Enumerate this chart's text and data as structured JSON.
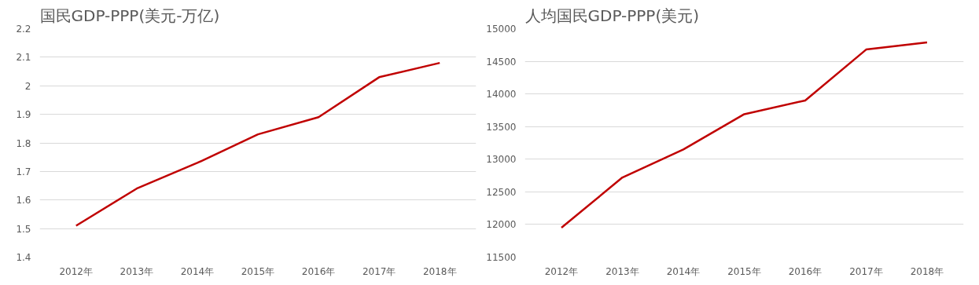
{
  "chart_data": [
    {
      "type": "line",
      "title": "国民GDP-PPP(美元-万亿)",
      "categories": [
        "2012年",
        "2013年",
        "2014年",
        "2015年",
        "2016年",
        "2017年",
        "2018年"
      ],
      "series": [
        {
          "color": "#c00000",
          "values": [
            1.51,
            1.64,
            1.73,
            1.83,
            1.89,
            2.03,
            2.08
          ]
        }
      ],
      "ylim": [
        1.4,
        2.2
      ],
      "yticks": [
        1.4,
        1.5,
        1.6,
        1.7,
        1.8,
        1.9,
        {
          "value": 2.0,
          "label": "2"
        },
        2.1,
        2.2
      ],
      "grid": "y",
      "marker": "none",
      "line_style": "solid"
    },
    {
      "type": "line",
      "title": "人均国民GDP-PPP(美元)",
      "categories": [
        "2012年",
        "2013年",
        "2014年",
        "2015年",
        "2016年",
        "2017年",
        "2018年"
      ],
      "series": [
        {
          "color": "#c00000",
          "values": [
            11950,
            12720,
            13150,
            13690,
            13900,
            14680,
            14790
          ]
        }
      ],
      "ylim": [
        11500,
        15000
      ],
      "yticks": [
        11500,
        12000,
        12500,
        13000,
        13500,
        14000,
        14500,
        15000
      ],
      "grid": "y",
      "marker": "none",
      "line_style": "solid"
    }
  ]
}
